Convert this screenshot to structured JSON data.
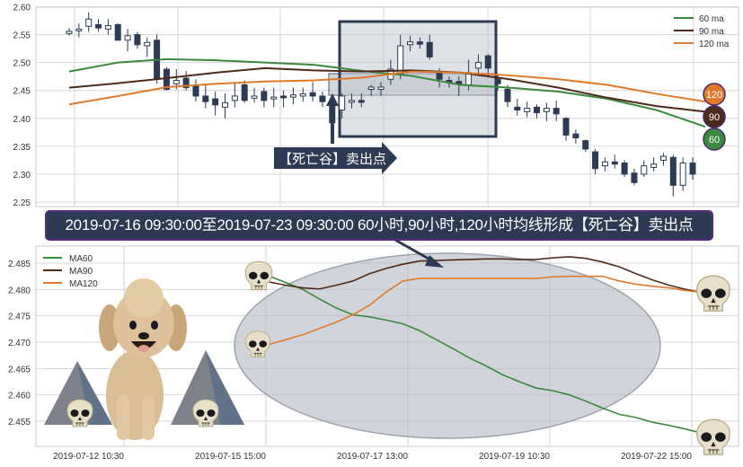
{
  "top_chart": {
    "type": "candlestick",
    "ylim": [
      2.25,
      2.6
    ],
    "y_ticks": [
      "2.25",
      "2.30",
      "2.35",
      "2.40",
      "2.45",
      "2.50",
      "2.55",
      "2.60"
    ],
    "legend": [
      "60 ma",
      "90 ma",
      "120 ma"
    ],
    "legend_placement": "top-right",
    "candle_format": [
      "open",
      "close",
      "high",
      "low"
    ],
    "candles": [
      [
        2.552,
        2.556,
        2.562,
        2.548
      ],
      [
        2.558,
        2.56,
        2.57,
        2.545
      ],
      [
        2.565,
        2.578,
        2.59,
        2.555
      ],
      [
        2.568,
        2.562,
        2.578,
        2.555
      ],
      [
        2.56,
        2.566,
        2.578,
        2.55
      ],
      [
        2.568,
        2.54,
        2.57,
        2.54
      ],
      [
        2.54,
        2.548,
        2.56,
        2.52
      ],
      [
        2.55,
        2.532,
        2.555,
        2.525
      ],
      [
        2.53,
        2.536,
        2.545,
        2.51
      ],
      [
        2.54,
        2.472,
        2.55,
        2.462
      ],
      [
        2.488,
        2.452,
        2.492,
        2.45
      ],
      [
        2.462,
        2.468,
        2.488,
        2.452
      ],
      [
        2.472,
        2.455,
        2.485,
        2.45
      ],
      [
        2.46,
        2.44,
        2.47,
        2.43
      ],
      [
        2.44,
        2.43,
        2.46,
        2.418
      ],
      [
        2.435,
        2.424,
        2.448,
        2.405
      ],
      [
        2.42,
        2.428,
        2.445,
        2.4
      ],
      [
        2.432,
        2.44,
        2.465,
        2.42
      ],
      [
        2.46,
        2.432,
        2.468,
        2.428
      ],
      [
        2.436,
        2.44,
        2.455,
        2.428
      ],
      [
        2.448,
        2.432,
        2.455,
        2.42
      ],
      [
        2.436,
        2.438,
        2.455,
        2.42
      ],
      [
        2.44,
        2.438,
        2.45,
        2.42
      ],
      [
        2.438,
        2.442,
        2.455,
        2.425
      ],
      [
        2.44,
        2.444,
        2.455,
        2.43
      ],
      [
        2.446,
        2.44,
        2.465,
        2.43
      ],
      [
        2.44,
        2.43,
        2.448,
        2.42
      ],
      [
        2.43,
        2.392,
        2.44,
        2.362
      ],
      [
        2.415,
        2.44,
        2.445,
        2.4
      ],
      [
        2.43,
        2.432,
        2.445,
        2.418
      ],
      [
        2.432,
        2.43,
        2.445,
        2.42
      ],
      [
        2.452,
        2.456,
        2.46,
        2.44
      ],
      [
        2.452,
        2.456,
        2.465,
        2.44
      ],
      [
        2.47,
        2.488,
        2.505,
        2.46
      ],
      [
        2.48,
        2.53,
        2.55,
        2.47
      ],
      [
        2.532,
        2.537,
        2.548,
        2.52
      ],
      [
        2.537,
        2.533,
        2.545,
        2.525
      ],
      [
        2.536,
        2.51,
        2.55,
        2.505
      ],
      [
        2.482,
        2.47,
        2.49,
        2.455
      ],
      [
        2.468,
        2.466,
        2.475,
        2.455
      ],
      [
        2.466,
        2.462,
        2.475,
        2.44
      ],
      [
        2.46,
        2.482,
        2.505,
        2.45
      ],
      [
        2.49,
        2.5,
        2.515,
        2.48
      ],
      [
        2.512,
        2.49,
        2.515,
        2.475
      ],
      [
        2.47,
        2.462,
        2.478,
        2.45
      ],
      [
        2.452,
        2.43,
        2.46,
        2.42
      ],
      [
        2.42,
        2.415,
        2.435,
        2.405
      ],
      [
        2.412,
        2.418,
        2.43,
        2.402
      ],
      [
        2.42,
        2.41,
        2.425,
        2.4
      ],
      [
        2.412,
        2.418,
        2.428,
        2.395
      ],
      [
        2.418,
        2.408,
        2.432,
        2.395
      ],
      [
        2.4,
        2.37,
        2.402,
        2.36
      ],
      [
        2.372,
        2.365,
        2.38,
        2.355
      ],
      [
        2.36,
        2.345,
        2.362,
        2.34
      ],
      [
        2.34,
        2.31,
        2.345,
        2.3
      ],
      [
        2.315,
        2.322,
        2.33,
        2.305
      ],
      [
        2.322,
        2.318,
        2.335,
        2.31
      ],
      [
        2.32,
        2.3,
        2.325,
        2.295
      ],
      [
        2.302,
        2.285,
        2.31,
        2.28
      ],
      [
        2.3,
        2.315,
        2.325,
        2.295
      ],
      [
        2.312,
        2.318,
        2.33,
        2.305
      ],
      [
        2.325,
        2.332,
        2.338,
        2.315
      ],
      [
        2.33,
        2.28,
        2.335,
        2.26
      ],
      [
        2.28,
        2.32,
        2.33,
        2.27
      ],
      [
        2.32,
        2.3,
        2.33,
        2.29
      ]
    ],
    "series": [
      {
        "name": "60 ma",
        "color": "#3a8a3e",
        "values": [
          2.484,
          2.5,
          2.506,
          2.504,
          2.5,
          2.496,
          2.485,
          2.476,
          2.46,
          2.455,
          2.448,
          2.435,
          2.415,
          2.385
        ]
      },
      {
        "name": "90 ma",
        "color": "#4e2a1a",
        "values": [
          2.455,
          2.463,
          2.472,
          2.482,
          2.49,
          2.486,
          2.484,
          2.486,
          2.482,
          2.47,
          2.455,
          2.437,
          2.422,
          2.412
        ]
      },
      {
        "name": "120 ma",
        "color": "#e07a2a",
        "values": [
          2.425,
          2.44,
          2.456,
          2.462,
          2.466,
          2.468,
          2.473,
          2.484,
          2.482,
          2.477,
          2.47,
          2.46,
          2.444,
          2.43
        ]
      }
    ],
    "end_badges": [
      {
        "label": "120",
        "color": "#e07a2a"
      },
      {
        "label": "90",
        "color": "#4e2a1a"
      },
      {
        "label": "60",
        "color": "#3a8a3e"
      }
    ],
    "annotation_label": "【死亡谷】卖出点",
    "grid": true
  },
  "banner": "2019-07-16 09:30:00至2019-07-23 09:30:00 60小时,90小时,120小时均线形成【死亡谷】卖出点",
  "chart_data": {
    "type": "line",
    "ylim": [
      2.452,
      2.488
    ],
    "y_ticks": [
      "2.455",
      "2.460",
      "2.465",
      "2.470",
      "2.475",
      "2.480",
      "2.485"
    ],
    "x_ticks": [
      "2019-07-12 10:30",
      "2019-07-15 15:00",
      "2019-07-17 13:00",
      "2019-07-19 10:30",
      "2019-07-22 15:00"
    ],
    "legend_placement": "top-left",
    "grid": true,
    "series": [
      {
        "name": "MA60",
        "color": "#3a8a3e",
        "values": [
          2.4825,
          2.4813,
          2.48,
          2.4782,
          2.4765,
          2.4752,
          2.4748,
          2.4742,
          2.4735,
          2.4722,
          2.4705,
          2.4688,
          2.467,
          2.4655,
          2.4638,
          2.4625,
          2.4613,
          2.4608,
          2.46,
          2.4588,
          2.4575,
          2.4563,
          2.4557,
          2.4548,
          2.4542,
          2.4535,
          2.4527
        ]
      },
      {
        "name": "MA90",
        "color": "#4e2a1a",
        "values": [
          2.4814,
          2.4808,
          2.4803,
          2.4801,
          2.4808,
          2.4816,
          2.483,
          2.484,
          2.4848,
          2.4854,
          2.4855,
          2.4856,
          2.4857,
          2.4858,
          2.4858,
          2.4857,
          2.4857,
          2.486,
          2.4862,
          2.4859,
          2.4852,
          2.4843,
          2.483,
          2.4818,
          2.4808,
          2.48,
          2.4794
        ]
      },
      {
        "name": "MA120",
        "color": "#e07a2a",
        "values": [
          2.4696,
          2.4705,
          2.4714,
          2.4726,
          2.4738,
          2.4752,
          2.477,
          2.4795,
          2.4816,
          2.4821,
          2.4821,
          2.4821,
          2.4821,
          2.4821,
          2.4821,
          2.4821,
          2.4821,
          2.4824,
          2.4825,
          2.4825,
          2.4825,
          2.4816,
          2.481,
          2.4806,
          2.4803,
          2.4798,
          2.4794
        ]
      }
    ]
  }
}
